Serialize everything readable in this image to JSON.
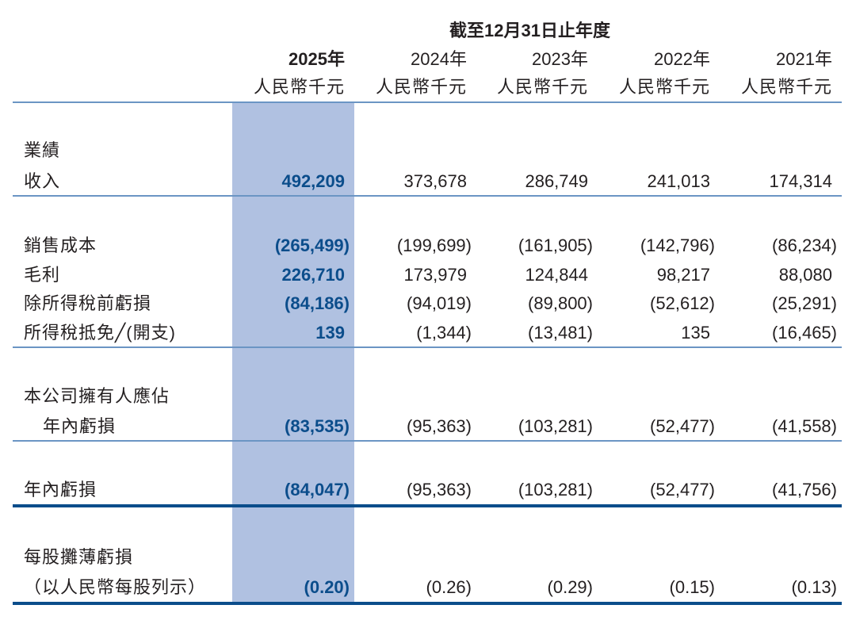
{
  "header": {
    "period": "截至12月31日止年度",
    "columns": [
      {
        "year": "2025年",
        "unit": "人民幣千元"
      },
      {
        "year": "2024年",
        "unit": "人民幣千元"
      },
      {
        "year": "2023年",
        "unit": "人民幣千元"
      },
      {
        "year": "2022年",
        "unit": "人民幣千元"
      },
      {
        "year": "2021年",
        "unit": "人民幣千元"
      }
    ]
  },
  "colors": {
    "highlight": "#b0c1e1",
    "accent": "#0b4d8b"
  },
  "rows": [
    {
      "label": "業績",
      "values": []
    },
    {
      "label": "收入",
      "values": [
        "492,209",
        "373,678",
        "286,749",
        "241,013",
        "174,314"
      ]
    },
    {
      "label": "銷售成本",
      "values": [
        "(265,499)",
        "(199,699)",
        "(161,905)",
        "(142,796)",
        "(86,234)"
      ]
    },
    {
      "label": "毛利",
      "values": [
        "226,710",
        "173,979",
        "124,844",
        "98,217",
        "88,080"
      ]
    },
    {
      "label": "除所得稅前虧損",
      "values": [
        "(84,186)",
        "(94,019)",
        "(89,800)",
        "(52,612)",
        "(25,291)"
      ]
    },
    {
      "label": "所得稅抵免╱(開支)",
      "values": [
        "139",
        "(1,344)",
        "(13,481)",
        "135",
        "(16,465)"
      ]
    },
    {
      "label": "本公司擁有人應佔",
      "values": []
    },
    {
      "label": "年內虧損",
      "values": [
        "(83,535)",
        "(95,363)",
        "(103,281)",
        "(52,477)",
        "(41,558)"
      ]
    },
    {
      "label": "年內虧損",
      "values": [
        "(84,047)",
        "(95,363)",
        "(103,281)",
        "(52,477)",
        "(41,756)"
      ]
    },
    {
      "label": "每股攤薄虧損",
      "values": []
    },
    {
      "label": "（以人民幣每股列示）",
      "values": [
        "(0.20)",
        "(0.26)",
        "(0.29)",
        "(0.15)",
        "(0.13)"
      ]
    }
  ]
}
